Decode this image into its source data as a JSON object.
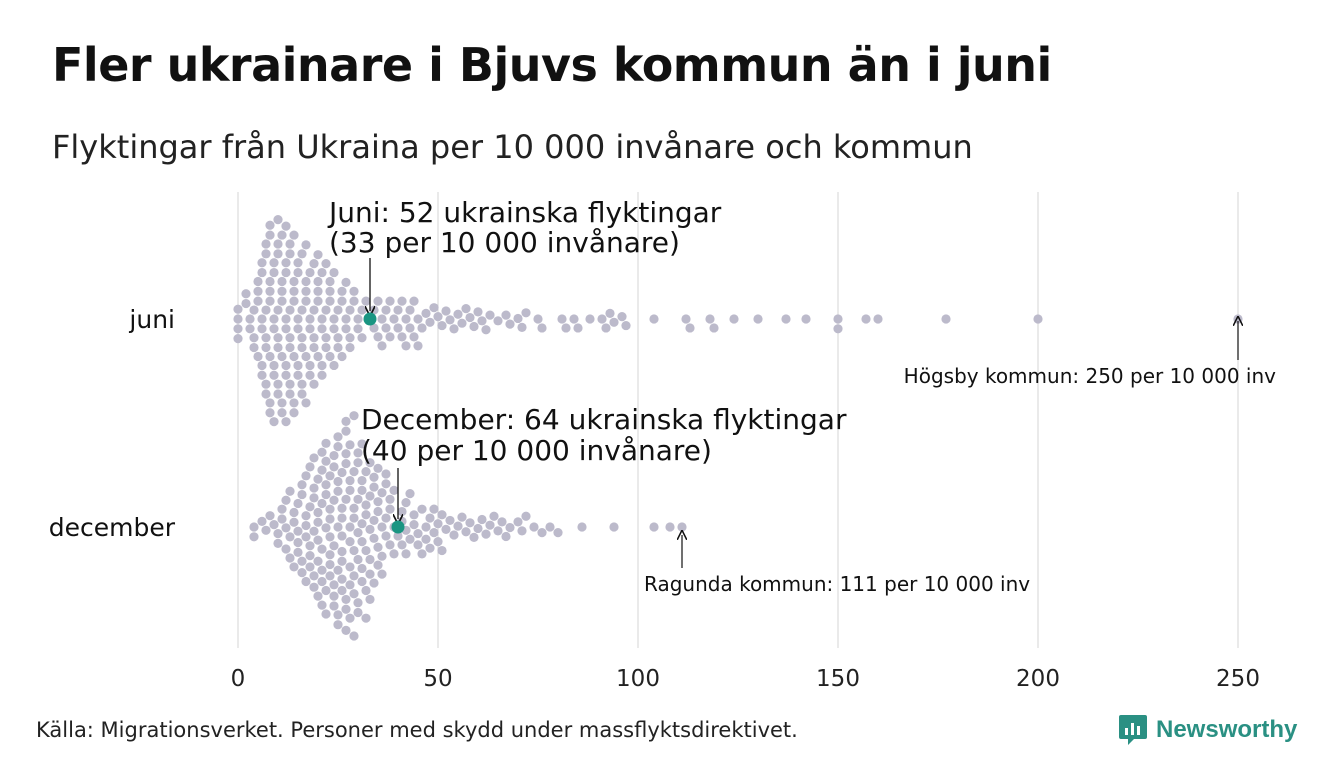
{
  "header": {
    "title": "Fler ukrainare i Bjuvs kommun än i juni",
    "subtitle": "Flyktingar från Ukraina per 10 000 invånare och kommun"
  },
  "footer": {
    "source": "Källa: Migrationsverket. Personer med skydd under massflyktsdirektivet.",
    "brand": "Newsworthy"
  },
  "colors": {
    "dots": "#bcbacb",
    "highlight": "#1a9582",
    "grid": "#d4d4d4",
    "brand": "#2a9083"
  },
  "chart_data": {
    "type": "scatter",
    "style": "beeswarm",
    "xlim": [
      0,
      250
    ],
    "x_ticks": [
      0,
      50,
      100,
      150,
      200,
      250
    ],
    "x_tick_labels": [
      "0",
      "50",
      "100",
      "150",
      "200",
      "250"
    ],
    "grid": true,
    "series": [
      {
        "name": "juni",
        "highlight": {
          "label": "Bjuvs kommun",
          "value": 33,
          "annotation": [
            "Juni: 52 ukrainska flyktingar",
            "(33 per 10 000 invånare)"
          ]
        },
        "max_label": {
          "value": 250,
          "text": "Högsby kommun: 250 per 10 000 inv"
        },
        "values": [
          0,
          0,
          0,
          0,
          2,
          2,
          3,
          3,
          4,
          4,
          4,
          5,
          5,
          5,
          5,
          6,
          6,
          6,
          6,
          6,
          6,
          7,
          7,
          7,
          7,
          7,
          7,
          7,
          8,
          8,
          8,
          8,
          8,
          8,
          8,
          8,
          9,
          9,
          9,
          9,
          9,
          9,
          9,
          10,
          10,
          10,
          10,
          10,
          10,
          10,
          10,
          11,
          11,
          11,
          11,
          11,
          11,
          11,
          12,
          12,
          12,
          12,
          12,
          12,
          12,
          12,
          13,
          13,
          13,
          13,
          13,
          13,
          13,
          14,
          14,
          14,
          14,
          14,
          14,
          14,
          15,
          15,
          15,
          15,
          15,
          15,
          16,
          16,
          16,
          16,
          16,
          16,
          17,
          17,
          17,
          17,
          17,
          17,
          18,
          18,
          18,
          18,
          18,
          19,
          19,
          19,
          19,
          19,
          20,
          20,
          20,
          20,
          20,
          21,
          21,
          21,
          21,
          21,
          22,
          22,
          22,
          22,
          23,
          23,
          23,
          23,
          24,
          24,
          24,
          24,
          25,
          25,
          25,
          26,
          26,
          26,
          27,
          27,
          27,
          28,
          28,
          28,
          29,
          29,
          30,
          30,
          31,
          31,
          32,
          33,
          34,
          34,
          35,
          35,
          36,
          36,
          37,
          37,
          38,
          38,
          39,
          40,
          40,
          41,
          41,
          42,
          42,
          43,
          43,
          44,
          44,
          45,
          45,
          46,
          47,
          48,
          49,
          50,
          51,
          52,
          53,
          54,
          55,
          56,
          57,
          58,
          59,
          60,
          61,
          62,
          63,
          65,
          67,
          68,
          70,
          71,
          72,
          75,
          76,
          81,
          82,
          84,
          85,
          88,
          91,
          92,
          93,
          94,
          96,
          97,
          104,
          112,
          113,
          118,
          119,
          124,
          130,
          137,
          142,
          150,
          150,
          157,
          160,
          177,
          200,
          250
        ]
      },
      {
        "name": "december",
        "highlight": {
          "label": "Bjuvs kommun",
          "value": 40,
          "annotation": [
            "December: 64 ukrainska flyktingar",
            "(40 per 10 000 invånare)"
          ]
        },
        "max_label": {
          "value": 111,
          "text": "Ragunda kommun: 111 per 10 000 inv"
        },
        "values": [
          4,
          4,
          6,
          7,
          8,
          9,
          10,
          10,
          11,
          11,
          12,
          12,
          12,
          13,
          13,
          13,
          14,
          14,
          14,
          15,
          15,
          15,
          15,
          16,
          16,
          16,
          16,
          17,
          17,
          17,
          17,
          17,
          18,
          18,
          18,
          18,
          18,
          19,
          19,
          19,
          19,
          19,
          19,
          20,
          20,
          20,
          20,
          20,
          20,
          21,
          21,
          21,
          21,
          21,
          21,
          21,
          22,
          22,
          22,
          22,
          22,
          22,
          22,
          23,
          23,
          23,
          23,
          23,
          23,
          23,
          24,
          24,
          24,
          24,
          24,
          24,
          24,
          25,
          25,
          25,
          25,
          25,
          25,
          25,
          25,
          26,
          26,
          26,
          26,
          26,
          26,
          26,
          26,
          27,
          27,
          27,
          27,
          27,
          27,
          27,
          27,
          28,
          28,
          28,
          28,
          28,
          28,
          28,
          28,
          29,
          29,
          29,
          29,
          29,
          29,
          29,
          29,
          30,
          30,
          30,
          30,
          30,
          30,
          30,
          31,
          31,
          31,
          31,
          31,
          31,
          31,
          32,
          32,
          32,
          32,
          32,
          32,
          33,
          33,
          33,
          33,
          33,
          33,
          34,
          34,
          34,
          34,
          34,
          35,
          35,
          35,
          35,
          35,
          36,
          36,
          36,
          36,
          37,
          37,
          37,
          37,
          38,
          38,
          38,
          39,
          39,
          39,
          40,
          41,
          41,
          41,
          42,
          42,
          42,
          43,
          43,
          44,
          44,
          45,
          45,
          46,
          46,
          47,
          47,
          48,
          48,
          49,
          49,
          50,
          50,
          51,
          51,
          52,
          53,
          54,
          55,
          56,
          57,
          58,
          59,
          60,
          61,
          62,
          63,
          64,
          65,
          66,
          67,
          68,
          70,
          71,
          72,
          74,
          76,
          78,
          80,
          86,
          94,
          104,
          108,
          111
        ]
      }
    ]
  }
}
